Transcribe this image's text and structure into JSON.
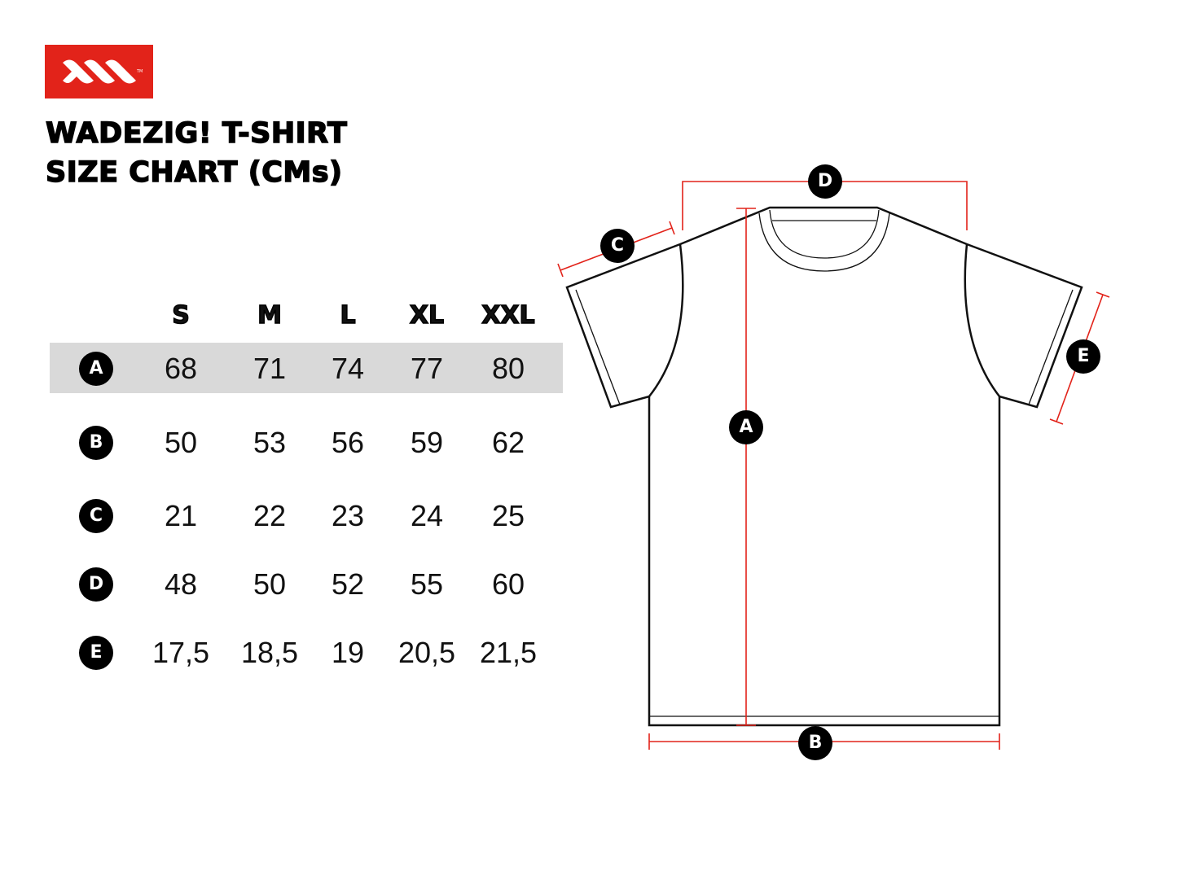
{
  "brand": {
    "name": "WADEZIG!",
    "color": "#e2231a",
    "logo_mark": "TM"
  },
  "title": {
    "line1": "WADEZIG! T-SHIRT",
    "line2": "SIZE CHART (CMs)"
  },
  "table": {
    "sizes": [
      "S",
      "M",
      "L",
      "XL",
      "XXL"
    ],
    "rows": [
      {
        "label": "A",
        "values": [
          "68",
          "71",
          "74",
          "77",
          "80"
        ],
        "highlighted": true
      },
      {
        "label": "B",
        "values": [
          "50",
          "53",
          "56",
          "59",
          "62"
        ]
      },
      {
        "label": "C",
        "values": [
          "21",
          "22",
          "23",
          "24",
          "25"
        ]
      },
      {
        "label": "D",
        "values": [
          "48",
          "50",
          "52",
          "55",
          "60"
        ]
      },
      {
        "label": "E",
        "values": [
          "17,5",
          "18,5",
          "19",
          "20,5",
          "21,5"
        ]
      }
    ]
  },
  "diagram": {
    "labels": {
      "A": "A",
      "B": "B",
      "C": "C",
      "D": "D",
      "E": "E"
    },
    "measure_color": "#e2231a"
  }
}
